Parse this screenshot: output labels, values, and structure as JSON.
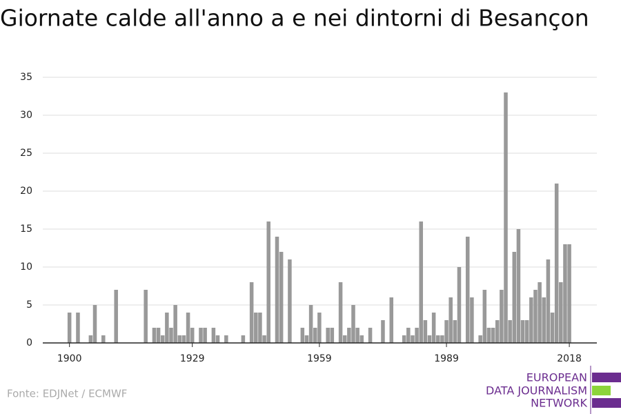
{
  "chart_data": {
    "type": "bar",
    "title": "Giornate calde all'anno a e nei dintorni di Besançon",
    "source": "Fonte: EDJNet / ECMWF",
    "logo": [
      "EUROPEAN",
      "DATA JOURNALISM",
      "NETWORK"
    ],
    "color": "#999999",
    "grid": true,
    "x": [
      1900,
      1901,
      1902,
      1903,
      1904,
      1905,
      1906,
      1907,
      1908,
      1909,
      1910,
      1911,
      1912,
      1913,
      1914,
      1915,
      1916,
      1917,
      1918,
      1919,
      1920,
      1921,
      1922,
      1923,
      1924,
      1925,
      1926,
      1927,
      1928,
      1929,
      1930,
      1931,
      1932,
      1933,
      1934,
      1935,
      1936,
      1937,
      1938,
      1939,
      1940,
      1941,
      1942,
      1943,
      1944,
      1945,
      1946,
      1947,
      1948,
      1949,
      1950,
      1951,
      1952,
      1953,
      1954,
      1955,
      1956,
      1957,
      1958,
      1959,
      1960,
      1961,
      1962,
      1963,
      1964,
      1965,
      1966,
      1967,
      1968,
      1969,
      1970,
      1971,
      1972,
      1973,
      1974,
      1975,
      1976,
      1977,
      1978,
      1979,
      1980,
      1981,
      1982,
      1983,
      1984,
      1985,
      1986,
      1987,
      1988,
      1989,
      1990,
      1991,
      1992,
      1993,
      1994,
      1995,
      1996,
      1997,
      1998,
      1999,
      2000,
      2001,
      2002,
      2003,
      2004,
      2005,
      2006,
      2007,
      2008,
      2009,
      2010,
      2011,
      2012,
      2013,
      2014,
      2015,
      2016,
      2017,
      2018
    ],
    "values": [
      4,
      0,
      4,
      0,
      0,
      1,
      5,
      0,
      1,
      0,
      0,
      7,
      0,
      0,
      0,
      0,
      0,
      0,
      7,
      0,
      2,
      2,
      1,
      4,
      2,
      5,
      1,
      1,
      4,
      2,
      0,
      2,
      2,
      0,
      2,
      1,
      0,
      1,
      0,
      0,
      0,
      1,
      0,
      8,
      4,
      4,
      1,
      16,
      0,
      14,
      12,
      0,
      11,
      0,
      0,
      2,
      1,
      5,
      2,
      4,
      0,
      2,
      2,
      0,
      8,
      1,
      2,
      5,
      2,
      1,
      0,
      2,
      0,
      0,
      3,
      0,
      6,
      0,
      0,
      1,
      2,
      1,
      2,
      16,
      3,
      1,
      4,
      1,
      1,
      3,
      6,
      3,
      10,
      0,
      14,
      6,
      0,
      1,
      7,
      2,
      2,
      3,
      7,
      33,
      3,
      12,
      15,
      3,
      3,
      6,
      7,
      8,
      6,
      11,
      4,
      21,
      8,
      13,
      13
    ],
    "xlim": [
      1893.7,
      2024.5
    ],
    "xticks": [
      1900,
      1929,
      1959,
      1989,
      2018
    ],
    "ylim": [
      0,
      35
    ],
    "yticks": [
      0,
      5,
      10,
      15,
      20,
      25,
      30,
      35
    ]
  }
}
